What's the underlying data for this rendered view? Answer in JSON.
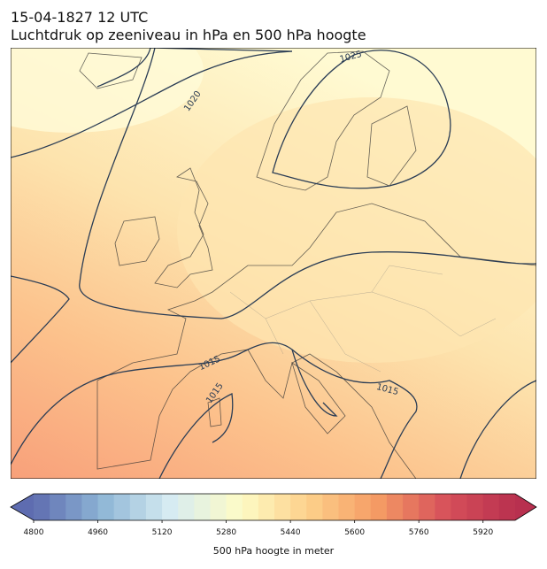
{
  "title": "15-04-1827 12 UTC",
  "subtitle": "Luchtdruk op zeeniveau in hPa en 500 hPa hoogte",
  "isobar_labels": [
    "1025",
    "1020",
    "1015",
    "1015",
    "1015"
  ],
  "colorbar": {
    "label": "500 hPa hoogte in meter",
    "lim": [
      4800,
      6000
    ],
    "ticks": [
      4800,
      4960,
      5120,
      5280,
      5440,
      5600,
      5760,
      5920
    ],
    "colors": [
      "#5e6cb0",
      "#8eb6d6",
      "#d7ecf2",
      "#fdfbc6",
      "#fdd08a",
      "#f59b64",
      "#d6505a",
      "#b8304f"
    ]
  }
}
